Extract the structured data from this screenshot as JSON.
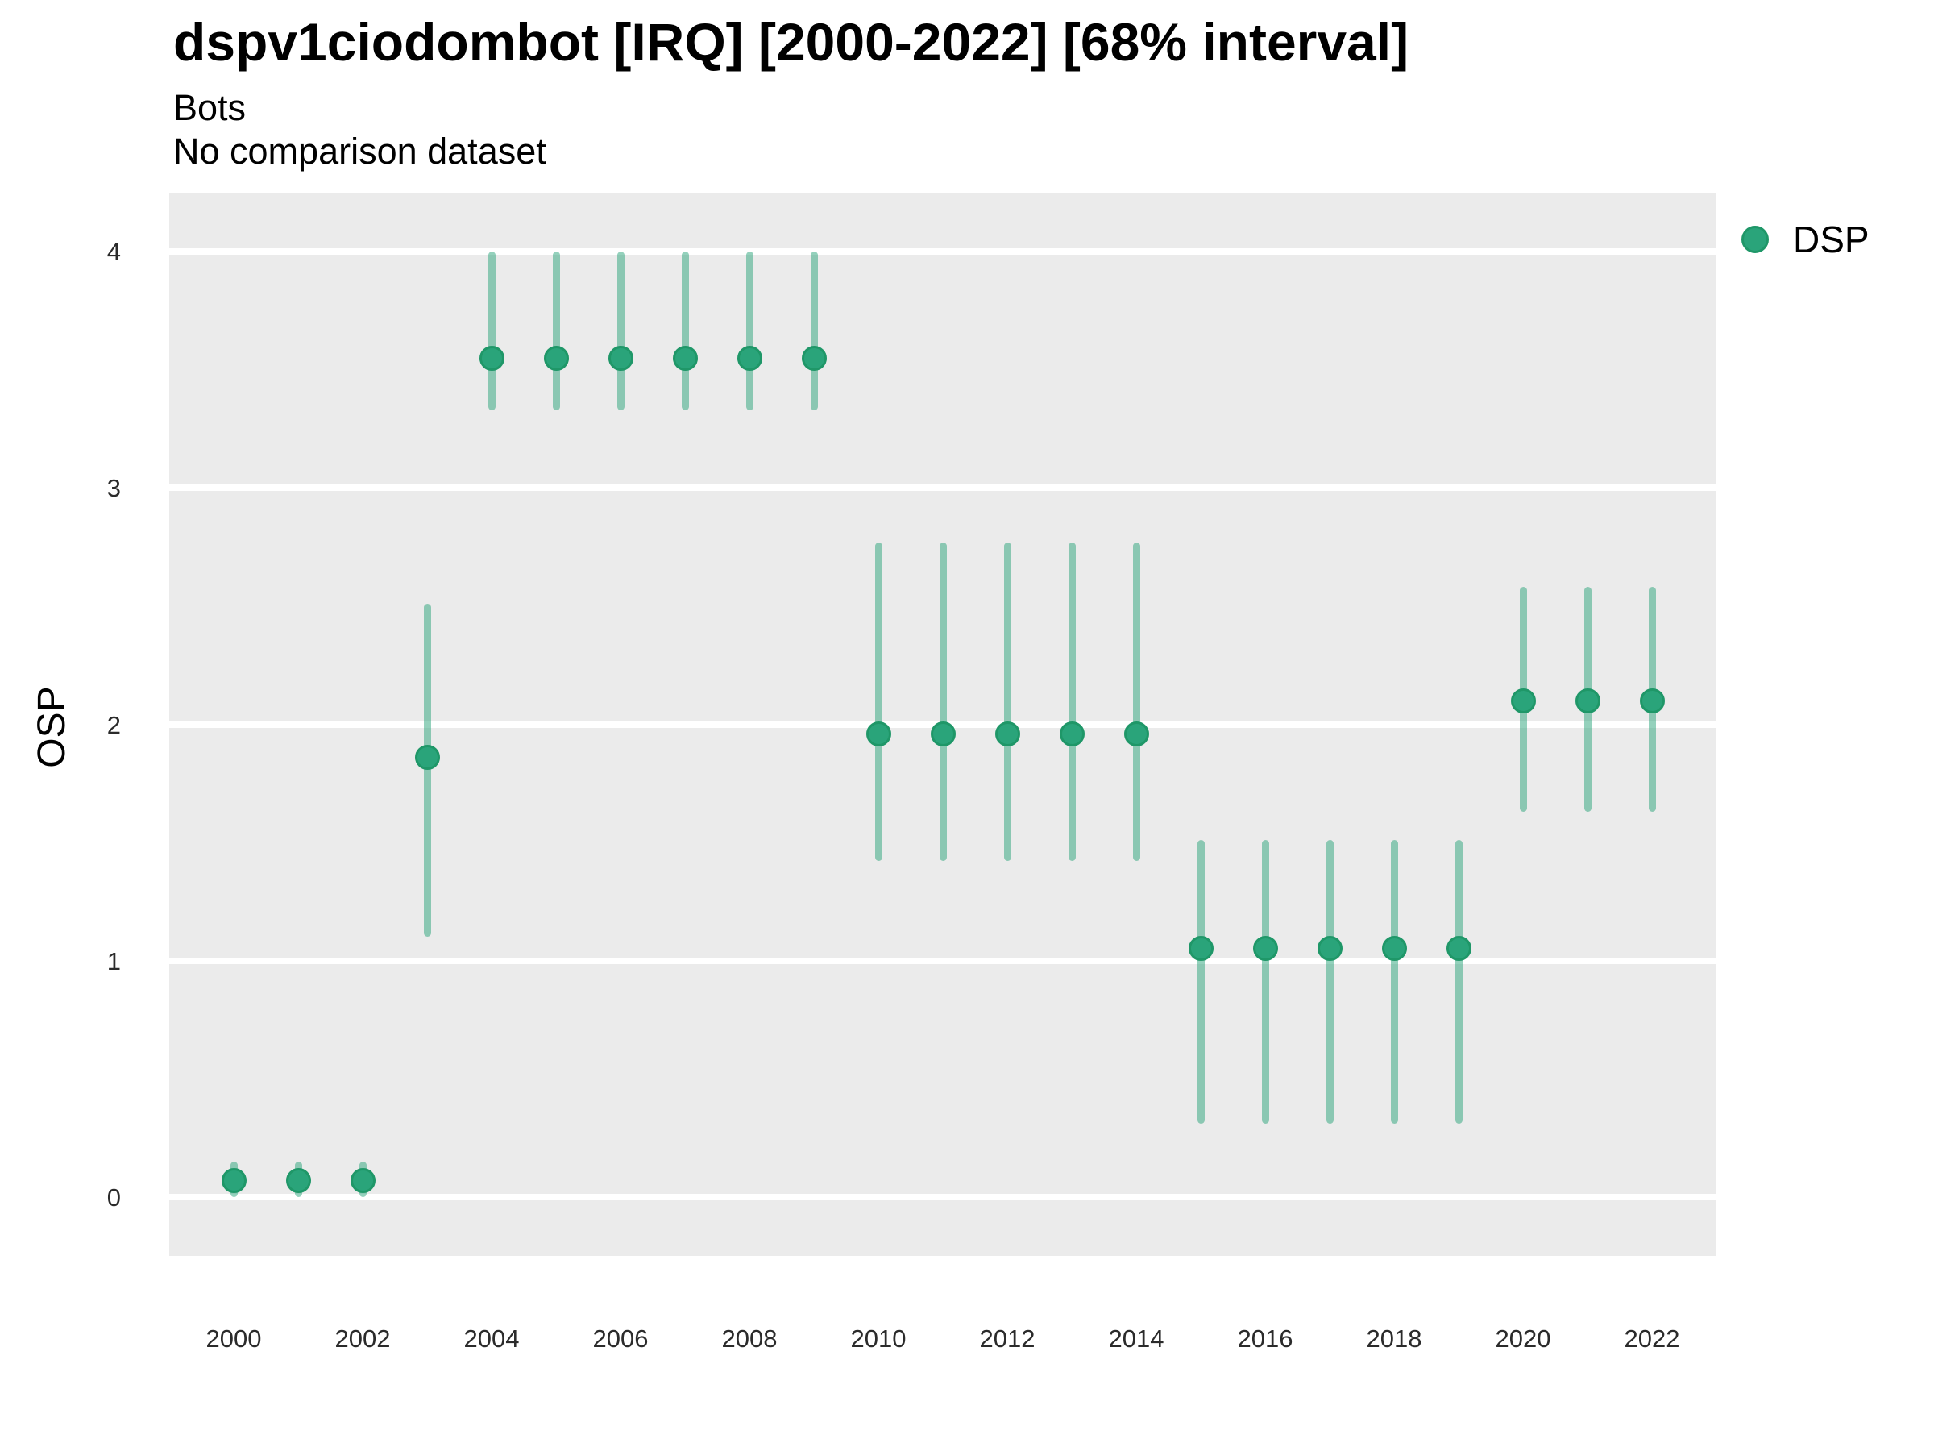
{
  "header": {
    "title": "dspv1ciodombot [IRQ] [2000-2022] [68% interval]",
    "subtitle1": "Bots",
    "subtitle2": "No comparison dataset"
  },
  "axes": {
    "y_label": "OSP"
  },
  "legend": {
    "items": [
      {
        "label": "DSP",
        "color": "#2AA47A",
        "border": "#1F9768"
      }
    ]
  },
  "chart_data": {
    "type": "scatter",
    "title": "dspv1ciodombot [IRQ] [2000-2022] [68% interval]",
    "subtitle": "Bots / No comparison dataset",
    "xlabel": "",
    "ylabel": "OSP",
    "interval": "68%",
    "legend_position": "right",
    "grid": "major-horizontal-white",
    "xlim": [
      1999,
      2023
    ],
    "ylim": [
      -0.25,
      4.25
    ],
    "xticks": [
      2000,
      2002,
      2004,
      2006,
      2008,
      2010,
      2012,
      2014,
      2016,
      2018,
      2020,
      2022
    ],
    "yticks": [
      0,
      1,
      2,
      3,
      4
    ],
    "colors": {
      "point": "#2AA47A",
      "point_border": "#1F9768",
      "interval_bar": "rgba(42,164,122,0.5)",
      "panel_bg": "#EBEBEB",
      "gridline": "#FFFFFF"
    },
    "series": [
      {
        "name": "DSP",
        "x": [
          2000,
          2001,
          2002,
          2003,
          2004,
          2005,
          2006,
          2007,
          2008,
          2009,
          2010,
          2011,
          2012,
          2013,
          2014,
          2015,
          2016,
          2017,
          2018,
          2019,
          2020,
          2021,
          2022
        ],
        "y": [
          0.07,
          0.07,
          0.07,
          1.86,
          3.55,
          3.55,
          3.55,
          3.55,
          3.55,
          3.55,
          1.96,
          1.96,
          1.96,
          1.96,
          1.96,
          1.05,
          1.05,
          1.05,
          1.05,
          1.05,
          2.1,
          2.1,
          2.1
        ],
        "y_lower": [
          0.0,
          0.0,
          0.0,
          1.1,
          3.33,
          3.33,
          3.33,
          3.33,
          3.33,
          3.33,
          1.42,
          1.42,
          1.42,
          1.42,
          1.42,
          0.31,
          0.31,
          0.31,
          0.31,
          0.31,
          1.63,
          1.63,
          1.63
        ],
        "y_upper": [
          0.15,
          0.15,
          0.15,
          2.51,
          4.0,
          4.0,
          4.0,
          4.0,
          4.0,
          4.0,
          2.77,
          2.77,
          2.77,
          2.77,
          2.77,
          1.51,
          1.51,
          1.51,
          1.51,
          1.51,
          2.58,
          2.58,
          2.58
        ]
      }
    ]
  }
}
